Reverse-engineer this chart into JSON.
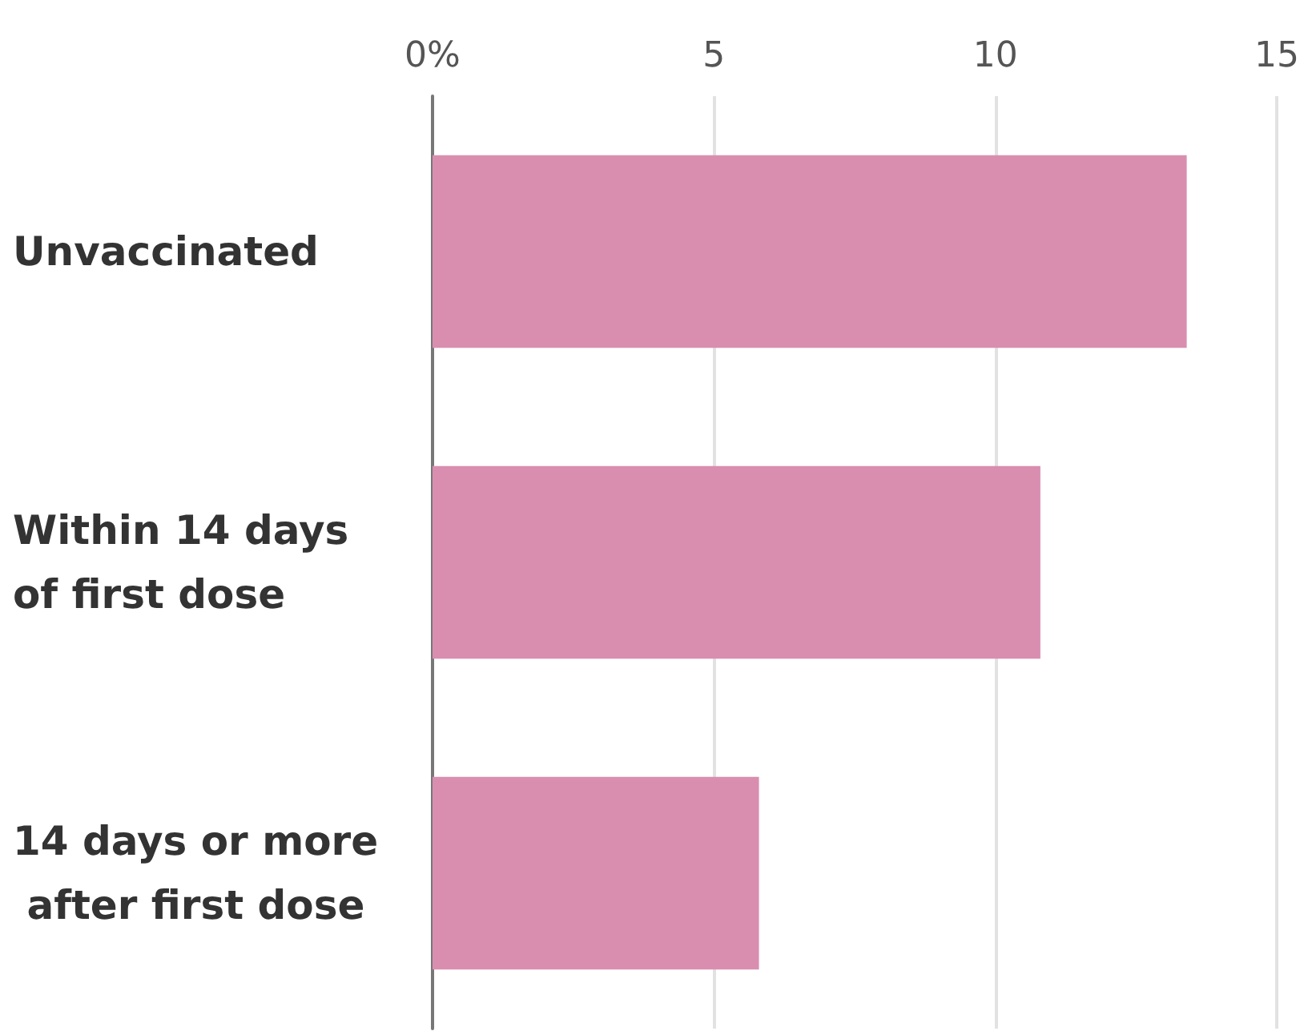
{
  "chart_data": {
    "type": "bar",
    "orientation": "horizontal",
    "categories": [
      "Unvaccinated",
      "Within 14 days of first dose",
      "14 days or more after first dose"
    ],
    "values": [
      13.4,
      10.8,
      5.8
    ],
    "color": "#d98eb0",
    "xlim": [
      0,
      15
    ],
    "xticks": [
      {
        "value": 0,
        "label": "0%"
      },
      5,
      10,
      15
    ],
    "grid": "x"
  }
}
